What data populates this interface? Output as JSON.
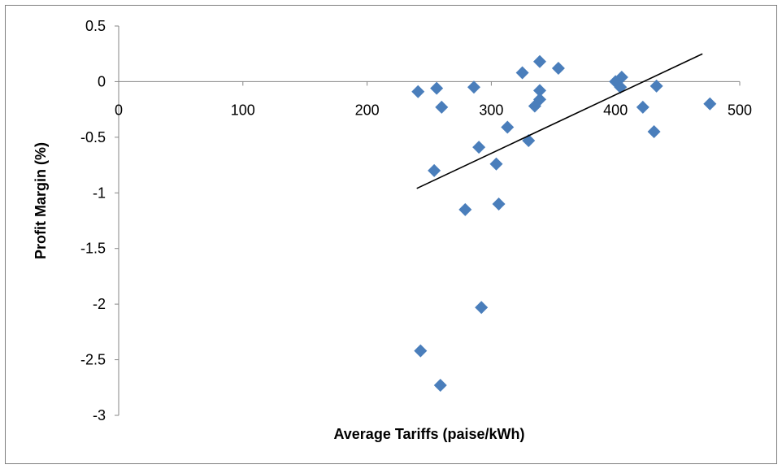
{
  "chart_data": {
    "type": "scatter",
    "xlabel": "Average Tariffs (paise/kWh)",
    "ylabel": "Profit Margin (%)",
    "xlim": [
      0,
      500
    ],
    "ylim": [
      -3,
      0.5
    ],
    "x_ticks": [
      0,
      100,
      200,
      300,
      400,
      500
    ],
    "y_ticks": [
      0.5,
      0,
      -0.5,
      -1,
      -1.5,
      -2,
      -2.5,
      -3
    ],
    "x_tick_labels": [
      "0",
      "100",
      "200",
      "300",
      "400",
      "500"
    ],
    "y_tick_labels": [
      "0.5",
      "0",
      "-0.5",
      "-1",
      "-1.5",
      "-2",
      "-2.5",
      "-3"
    ],
    "grid": false,
    "legend": "none",
    "marker": "diamond",
    "marker_color": "#4a7ebb",
    "trendline": {
      "type": "linear",
      "x": [
        240,
        470
      ],
      "y": [
        -0.96,
        0.25
      ],
      "color": "#000000"
    },
    "points": [
      {
        "x": 241,
        "y": -0.09
      },
      {
        "x": 256,
        "y": -0.06
      },
      {
        "x": 260,
        "y": -0.23
      },
      {
        "x": 286,
        "y": -0.05
      },
      {
        "x": 325,
        "y": 0.08
      },
      {
        "x": 339,
        "y": 0.18
      },
      {
        "x": 354,
        "y": 0.12
      },
      {
        "x": 339,
        "y": -0.08
      },
      {
        "x": 339,
        "y": -0.16
      },
      {
        "x": 335,
        "y": -0.22
      },
      {
        "x": 313,
        "y": -0.41
      },
      {
        "x": 330,
        "y": -0.53
      },
      {
        "x": 290,
        "y": -0.59
      },
      {
        "x": 304,
        "y": -0.74
      },
      {
        "x": 254,
        "y": -0.8
      },
      {
        "x": 306,
        "y": -1.1
      },
      {
        "x": 279,
        "y": -1.15
      },
      {
        "x": 292,
        "y": -2.03
      },
      {
        "x": 243,
        "y": -2.42
      },
      {
        "x": 259,
        "y": -2.73
      },
      {
        "x": 400,
        "y": 0.0
      },
      {
        "x": 405,
        "y": 0.04
      },
      {
        "x": 404,
        "y": -0.05
      },
      {
        "x": 433,
        "y": -0.04
      },
      {
        "x": 422,
        "y": -0.23
      },
      {
        "x": 431,
        "y": -0.45
      },
      {
        "x": 476,
        "y": -0.2
      }
    ]
  }
}
